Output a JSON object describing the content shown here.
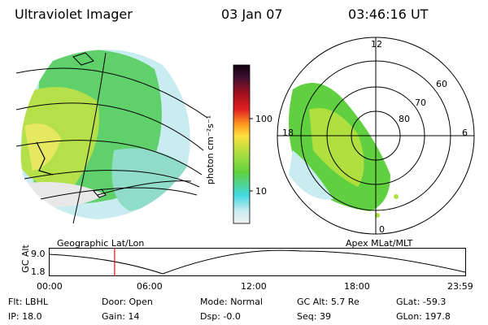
{
  "header": {
    "title": "Ultraviolet Imager",
    "date": "03 Jan 07",
    "time": "03:46:16 UT"
  },
  "colorbar": {
    "label": "photon cm⁻²s⁻¹",
    "ticks": [
      "100",
      "10"
    ]
  },
  "polar": {
    "mlt_labels": {
      "top": "12",
      "left": "18",
      "right": "6",
      "bottom": "0"
    },
    "lat_labels": [
      "80",
      "70",
      "60"
    ]
  },
  "panel_labels": {
    "left": "Geographic Lat/Lon",
    "right": "Apex MLat/MLT"
  },
  "altitude_plot": {
    "ylabel": "GC Alt",
    "yticks": [
      "9.0",
      "1.8"
    ],
    "xticks": [
      "00:00",
      "06:00",
      "12:00",
      "18:00",
      "23:59"
    ],
    "marker_time_fraction": 0.158
  },
  "info": {
    "flt_label": "Flt:",
    "flt_value": "LBHL",
    "ip_label": "IP:",
    "ip_value": "18.0",
    "door_label": "Door:",
    "door_value": "Open",
    "gain_label": "Gain:",
    "gain_value": "14",
    "mode_label": "Mode:",
    "mode_value": "Normal",
    "dsp_label": "Dsp:",
    "dsp_value": "-0.0",
    "gcalt_label": "GC Alt:",
    "gcalt_value": "5.7 Re",
    "seq_label": "Seq:",
    "seq_value": "39",
    "glat_label": "GLat:",
    "glat_value": "-59.3",
    "glon_label": "GLon:",
    "glon_value": "197.8"
  },
  "colors": {
    "marker": "#e0201c",
    "cyan": "#40d8e0",
    "green": "#60d040",
    "yellowgreen": "#b0e040"
  }
}
